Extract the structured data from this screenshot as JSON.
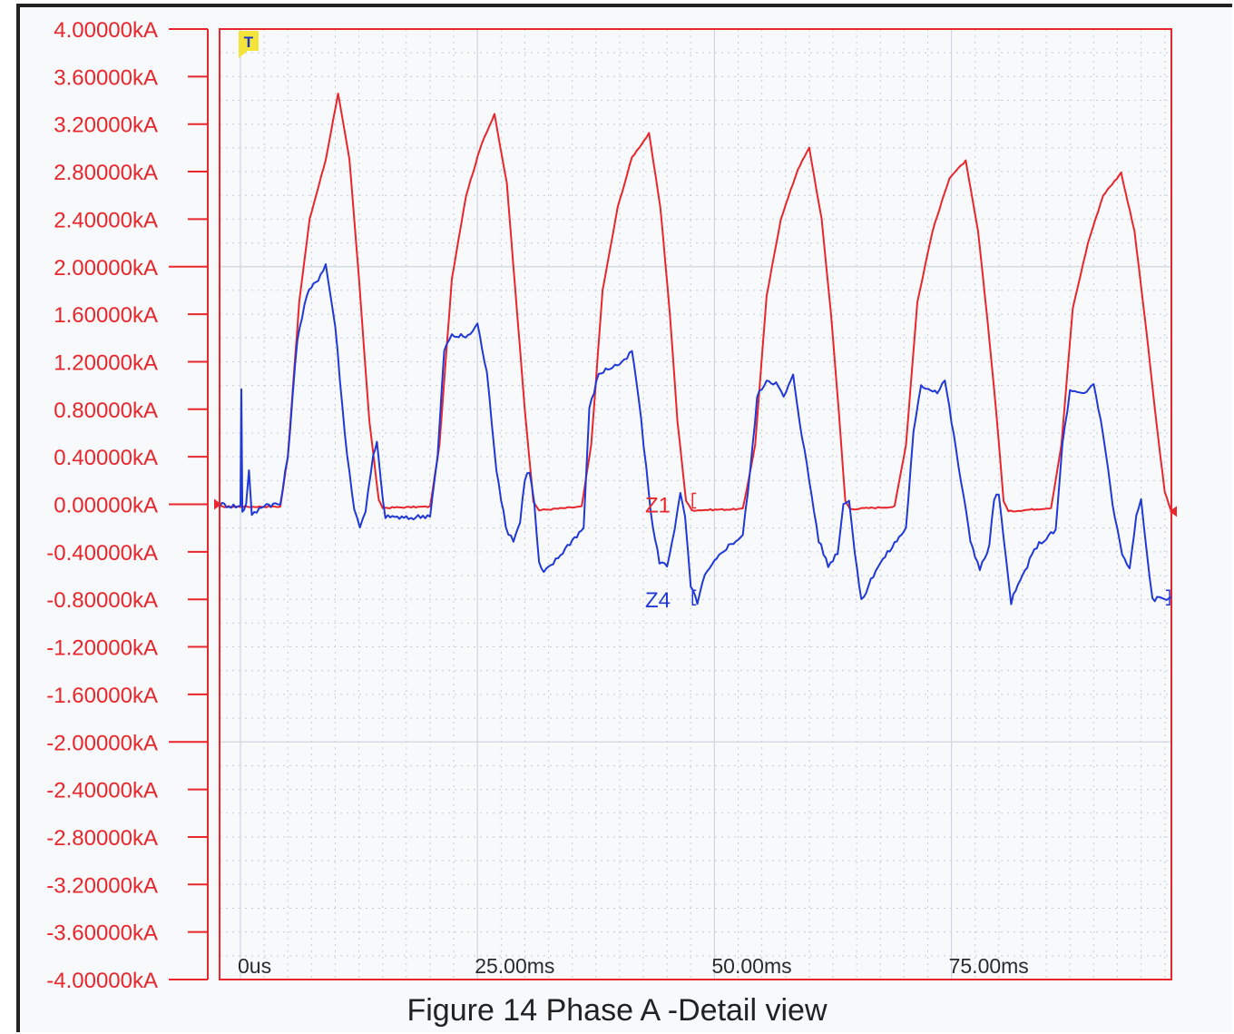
{
  "chart_data": {
    "type": "line",
    "caption": "Figure 14 Phase A -Detail view",
    "y_ticks": [
      "4.00000kA",
      "3.60000kA",
      "3.20000kA",
      "2.80000kA",
      "2.40000kA",
      "2.00000kA",
      "1.60000kA",
      "1.20000kA",
      "0.80000kA",
      "0.40000kA",
      "0.00000kA",
      "-0.40000kA",
      "-0.80000kA",
      "-1.20000kA",
      "-1.60000kA",
      "-2.00000kA",
      "-2.40000kA",
      "-2.80000kA",
      "-3.20000kA",
      "-3.60000kA",
      "-4.00000kA"
    ],
    "x_tick_labels": [
      {
        "t": 0,
        "label": "0us"
      },
      {
        "t": 25,
        "label": "25.00ms"
      },
      {
        "t": 50,
        "label": "50.00ms"
      },
      {
        "t": 75,
        "label": "75.00ms"
      }
    ],
    "ylim": [
      -4.0,
      4.0
    ],
    "xlim": [
      -2.2,
      98.2
    ],
    "trigger_marker": "T",
    "colors": {
      "z1": "#e8262b",
      "z4": "#2038d6",
      "axis": "#e8262b",
      "grid_major": "#cfd6df",
      "grid_minor": "#c6cbd3"
    },
    "series": [
      {
        "name": "Z1",
        "color": "#e8262b",
        "points": [
          [
            -2.2,
            -0.02
          ],
          [
            0,
            -0.02
          ],
          [
            4.2,
            -0.02
          ],
          [
            5.0,
            0.4
          ],
          [
            6.2,
            1.7
          ],
          [
            7.3,
            2.4
          ],
          [
            9.0,
            2.9
          ],
          [
            10.3,
            3.46
          ],
          [
            11.5,
            2.9
          ],
          [
            12.5,
            1.9
          ],
          [
            13.6,
            0.7
          ],
          [
            14.6,
            0.03
          ],
          [
            15.0,
            -0.03
          ],
          [
            20.0,
            -0.02
          ],
          [
            21.0,
            0.5
          ],
          [
            22.3,
            1.9
          ],
          [
            23.8,
            2.6
          ],
          [
            25.5,
            3.05
          ],
          [
            26.8,
            3.28
          ],
          [
            28.1,
            2.7
          ],
          [
            29.0,
            1.8
          ],
          [
            30.0,
            0.8
          ],
          [
            30.9,
            0.02
          ],
          [
            31.5,
            -0.05
          ],
          [
            36.0,
            -0.02
          ],
          [
            37.0,
            0.5
          ],
          [
            38.2,
            1.8
          ],
          [
            39.8,
            2.5
          ],
          [
            41.3,
            2.92
          ],
          [
            43.1,
            3.12
          ],
          [
            44.3,
            2.5
          ],
          [
            45.3,
            1.6
          ],
          [
            46.1,
            0.7
          ],
          [
            47.0,
            0.03
          ],
          [
            47.6,
            -0.05
          ],
          [
            53.0,
            -0.04
          ],
          [
            54.3,
            0.5
          ],
          [
            55.5,
            1.75
          ],
          [
            57.0,
            2.4
          ],
          [
            58.8,
            2.82
          ],
          [
            60.0,
            3.0
          ],
          [
            61.3,
            2.4
          ],
          [
            62.3,
            1.6
          ],
          [
            63.1,
            0.8
          ],
          [
            63.8,
            0.03
          ],
          [
            64.3,
            -0.04
          ],
          [
            69.0,
            -0.02
          ],
          [
            70.2,
            0.5
          ],
          [
            71.4,
            1.7
          ],
          [
            73.0,
            2.3
          ],
          [
            74.8,
            2.75
          ],
          [
            76.5,
            2.89
          ],
          [
            77.8,
            2.3
          ],
          [
            78.8,
            1.55
          ],
          [
            79.7,
            0.8
          ],
          [
            80.5,
            0.03
          ],
          [
            81.0,
            -0.06
          ],
          [
            85.5,
            -0.03
          ],
          [
            86.6,
            0.5
          ],
          [
            87.8,
            1.65
          ],
          [
            89.4,
            2.2
          ],
          [
            91.0,
            2.6
          ],
          [
            92.9,
            2.79
          ],
          [
            94.3,
            2.3
          ],
          [
            95.5,
            1.5
          ],
          [
            96.6,
            0.7
          ],
          [
            97.5,
            0.1
          ],
          [
            98.2,
            -0.06
          ]
        ]
      },
      {
        "name": "Z4",
        "color": "#2038d6",
        "points": [
          [
            -2.2,
            0.0
          ],
          [
            0,
            -0.02
          ],
          [
            0.1,
            0.98
          ],
          [
            0.2,
            -0.06
          ],
          [
            0.6,
            0.0
          ],
          [
            0.9,
            0.3
          ],
          [
            1.2,
            -0.1
          ],
          [
            2.5,
            0.0
          ],
          [
            4.2,
            0.0
          ],
          [
            5.0,
            0.4
          ],
          [
            6.0,
            1.4
          ],
          [
            7.0,
            1.76
          ],
          [
            8.2,
            1.9
          ],
          [
            9.0,
            2.02
          ],
          [
            10.0,
            1.5
          ],
          [
            11.0,
            0.6
          ],
          [
            12.0,
            -0.05
          ],
          [
            12.6,
            -0.18
          ],
          [
            13.2,
            -0.05
          ],
          [
            14.0,
            0.4
          ],
          [
            14.4,
            0.52
          ],
          [
            14.8,
            0.2
          ],
          [
            15.3,
            -0.12
          ],
          [
            15.8,
            -0.1
          ],
          [
            17.5,
            -0.12
          ],
          [
            20.0,
            -0.09
          ],
          [
            20.8,
            0.4
          ],
          [
            21.5,
            1.3
          ],
          [
            22.3,
            1.42
          ],
          [
            24.0,
            1.41
          ],
          [
            25.0,
            1.52
          ],
          [
            26.0,
            1.1
          ],
          [
            27.0,
            0.3
          ],
          [
            28.0,
            -0.2
          ],
          [
            28.8,
            -0.3
          ],
          [
            29.5,
            -0.15
          ],
          [
            30.0,
            0.22
          ],
          [
            30.5,
            0.28
          ],
          [
            31.0,
            0.0
          ],
          [
            31.5,
            -0.5
          ],
          [
            32.0,
            -0.58
          ],
          [
            33.5,
            -0.45
          ],
          [
            35.0,
            -0.3
          ],
          [
            36.2,
            -0.2
          ],
          [
            36.8,
            0.8
          ],
          [
            37.8,
            1.1
          ],
          [
            39.0,
            1.15
          ],
          [
            40.5,
            1.2
          ],
          [
            41.3,
            1.29
          ],
          [
            42.0,
            0.9
          ],
          [
            42.8,
            0.3
          ],
          [
            43.5,
            -0.2
          ],
          [
            44.2,
            -0.48
          ],
          [
            45.0,
            -0.52
          ],
          [
            45.8,
            -0.2
          ],
          [
            46.4,
            0.08
          ],
          [
            46.9,
            -0.1
          ],
          [
            47.5,
            -0.7
          ],
          [
            48.2,
            -0.82
          ],
          [
            49.0,
            -0.6
          ],
          [
            51.0,
            -0.38
          ],
          [
            53.0,
            -0.26
          ],
          [
            53.8,
            0.3
          ],
          [
            54.5,
            0.9
          ],
          [
            55.5,
            1.05
          ],
          [
            56.5,
            1.02
          ],
          [
            57.3,
            0.9
          ],
          [
            58.3,
            1.08
          ],
          [
            59.0,
            0.7
          ],
          [
            60.0,
            0.2
          ],
          [
            61.0,
            -0.3
          ],
          [
            62.0,
            -0.52
          ],
          [
            63.0,
            -0.4
          ],
          [
            63.6,
            0.0
          ],
          [
            64.2,
            0.05
          ],
          [
            64.8,
            -0.4
          ],
          [
            65.5,
            -0.82
          ],
          [
            67.0,
            -0.55
          ],
          [
            69.0,
            -0.33
          ],
          [
            70.2,
            -0.2
          ],
          [
            71.0,
            0.6
          ],
          [
            71.8,
            1.0
          ],
          [
            73.5,
            0.95
          ],
          [
            74.3,
            1.05
          ],
          [
            75.0,
            0.7
          ],
          [
            76.0,
            0.2
          ],
          [
            77.0,
            -0.3
          ],
          [
            78.0,
            -0.55
          ],
          [
            79.0,
            -0.35
          ],
          [
            79.5,
            0.05
          ],
          [
            80.0,
            0.08
          ],
          [
            80.5,
            -0.3
          ],
          [
            81.3,
            -0.82
          ],
          [
            82.5,
            -0.6
          ],
          [
            84.0,
            -0.35
          ],
          [
            86.0,
            -0.22
          ],
          [
            86.7,
            0.5
          ],
          [
            87.5,
            0.95
          ],
          [
            89.0,
            0.92
          ],
          [
            90.0,
            1.02
          ],
          [
            91.0,
            0.6
          ],
          [
            92.0,
            0.0
          ],
          [
            93.0,
            -0.42
          ],
          [
            93.8,
            -0.55
          ],
          [
            94.5,
            -0.1
          ],
          [
            95.0,
            0.03
          ],
          [
            95.6,
            -0.4
          ],
          [
            96.2,
            -0.8
          ],
          [
            98.2,
            -0.78
          ]
        ]
      }
    ],
    "end_labels": [
      {
        "text": "Z1",
        "series": "Z1"
      },
      {
        "text": "Z4",
        "series": "Z4"
      }
    ]
  }
}
